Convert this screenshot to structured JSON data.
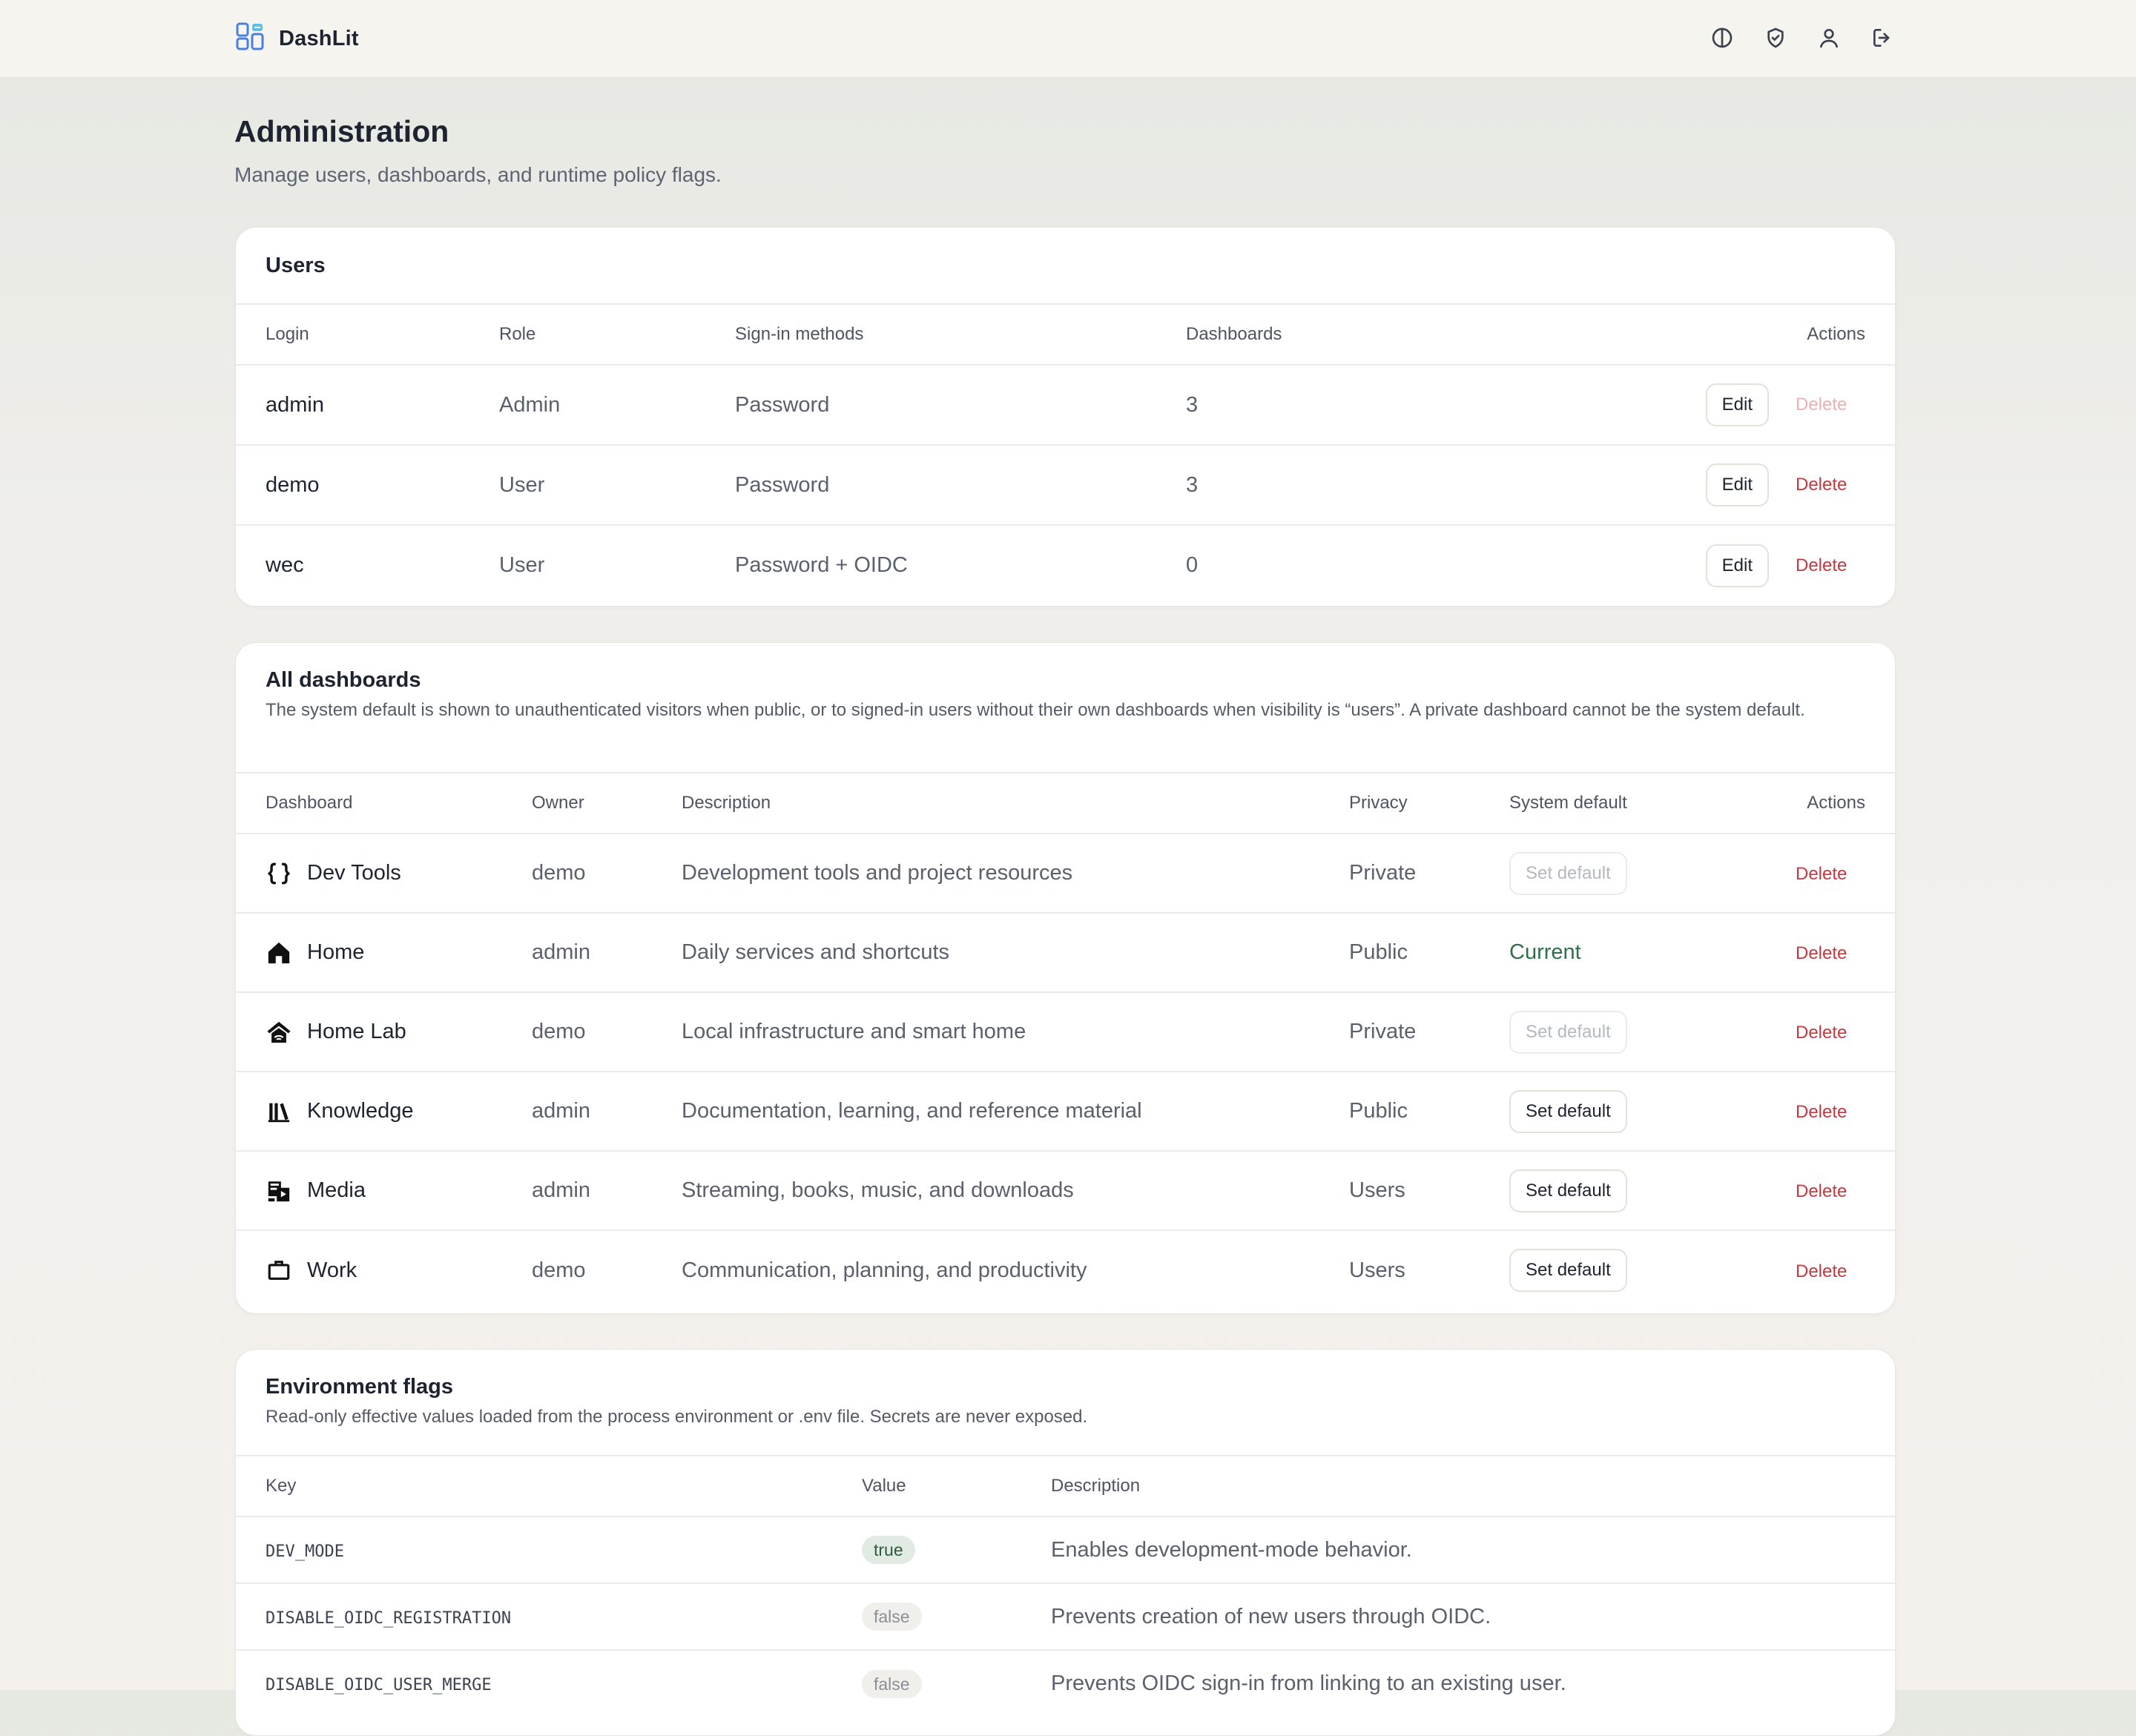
{
  "app": {
    "name": "DashLit"
  },
  "nav": [
    {
      "name": "theme-toggle-icon"
    },
    {
      "name": "shield-icon"
    },
    {
      "name": "user-icon"
    },
    {
      "name": "logout-icon"
    }
  ],
  "page": {
    "title": "Administration",
    "subtitle": "Manage users, dashboards, and runtime policy flags."
  },
  "users": {
    "title": "Users",
    "columns": [
      "Login",
      "Role",
      "Sign-in methods",
      "Dashboards",
      "Actions"
    ],
    "rows": [
      {
        "login": "admin",
        "role": "Admin",
        "methods": "Password",
        "dashboards": "3",
        "edit": "Edit",
        "delete": "Delete",
        "delete_disabled": true
      },
      {
        "login": "demo",
        "role": "User",
        "methods": "Password",
        "dashboards": "3",
        "edit": "Edit",
        "delete": "Delete",
        "delete_disabled": false
      },
      {
        "login": "wec",
        "role": "User",
        "methods": "Password + OIDC",
        "dashboards": "0",
        "edit": "Edit",
        "delete": "Delete",
        "delete_disabled": false
      }
    ]
  },
  "dashboards": {
    "title": "All dashboards",
    "description": "The system default is shown to unauthenticated visitors when public, or to signed-in users without their own dashboards when visibility is “users”. A private dashboard cannot be the system default.",
    "columns": [
      "Dashboard",
      "Owner",
      "Description",
      "Privacy",
      "System default",
      "Actions"
    ],
    "rows": [
      {
        "icon": "braces-icon",
        "name": "Dev Tools",
        "owner": "demo",
        "description": "Development tools and project resources",
        "privacy": "Private",
        "default_state": "disabled",
        "default_label": "Set default",
        "delete": "Delete"
      },
      {
        "icon": "home-icon",
        "name": "Home",
        "owner": "admin",
        "description": "Daily services and shortcuts",
        "privacy": "Public",
        "default_state": "current",
        "default_label": "Current",
        "delete": "Delete"
      },
      {
        "icon": "home-lab-icon",
        "name": "Home Lab",
        "owner": "demo",
        "description": "Local infrastructure and smart home",
        "privacy": "Private",
        "default_state": "disabled",
        "default_label": "Set default",
        "delete": "Delete"
      },
      {
        "icon": "library-icon",
        "name": "Knowledge",
        "owner": "admin",
        "description": "Documentation, learning, and reference material",
        "privacy": "Public",
        "default_state": "enabled",
        "default_label": "Set default",
        "delete": "Delete"
      },
      {
        "icon": "media-icon",
        "name": "Media",
        "owner": "admin",
        "description": "Streaming, books, music, and downloads",
        "privacy": "Users",
        "default_state": "enabled",
        "default_label": "Set default",
        "delete": "Delete"
      },
      {
        "icon": "briefcase-icon",
        "name": "Work",
        "owner": "demo",
        "description": "Communication, planning, and productivity",
        "privacy": "Users",
        "default_state": "enabled",
        "default_label": "Set default",
        "delete": "Delete"
      }
    ]
  },
  "env": {
    "title": "Environment flags",
    "description": "Read-only effective values loaded from the process environment or .env file. Secrets are never exposed.",
    "columns": [
      "Key",
      "Value",
      "Description"
    ],
    "rows": [
      {
        "key": "DEV_MODE",
        "value": "true",
        "description": "Enables development-mode behavior."
      },
      {
        "key": "DISABLE_OIDC_REGISTRATION",
        "value": "false",
        "description": "Prevents creation of new users through OIDC."
      },
      {
        "key": "DISABLE_OIDC_USER_MERGE",
        "value": "false",
        "description": "Prevents OIDC sign-in from linking to an existing user."
      }
    ]
  }
}
